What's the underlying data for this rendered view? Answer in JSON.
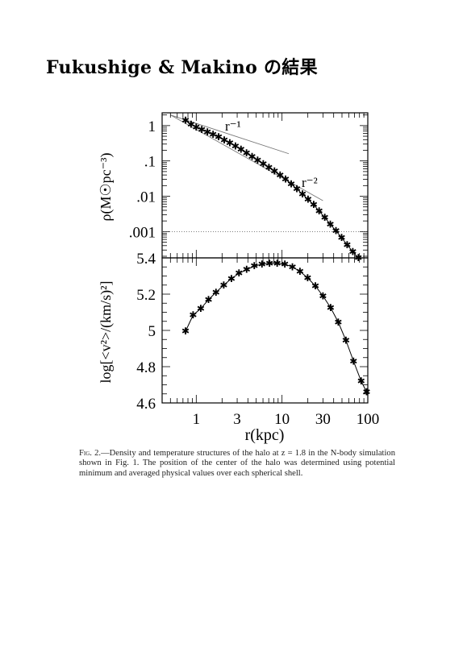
{
  "page": {
    "title": "Fukushige & Makino の結果"
  },
  "figure": {
    "caption_label": "Fig. 2.",
    "caption_text": "—Density and temperature structures of the halo at z = 1.8 in the N-body simulation shown in Fig. 1. The position of the center of the halo was determined using potential minimum and averaged physical values over each spherical shell."
  },
  "chart_data": [
    {
      "type": "line",
      "panel": "top",
      "ylabel": "ρ(M☉pc⁻³)",
      "xscale": "log",
      "yscale": "log",
      "xlim": [
        0.4,
        100
      ],
      "ylim": [
        0.00018,
        2.3
      ],
      "yticks": [
        1,
        0.1,
        0.01,
        0.001
      ],
      "ytick_labels": [
        "1",
        ".1",
        ".01",
        ".001"
      ],
      "annotations": [
        "r⁻¹",
        "r⁻²"
      ],
      "series": [
        {
          "x": [
            0.75,
            0.87,
            1.0,
            1.16,
            1.35,
            1.57,
            1.82,
            2.12,
            2.46,
            2.86,
            3.32,
            3.86,
            4.48,
            5.2,
            6.05,
            7.03,
            8.17,
            9.49,
            11.0,
            12.8,
            14.9,
            17.3,
            20.1,
            23.4,
            27.1,
            31.5,
            36.6,
            42.6,
            49.5,
            57.5,
            66.8,
            77.6
          ],
          "y": [
            1.38,
            1.08,
            0.9,
            0.77,
            0.66,
            0.56,
            0.47,
            0.39,
            0.32,
            0.26,
            0.21,
            0.165,
            0.13,
            0.103,
            0.082,
            0.065,
            0.051,
            0.039,
            0.03,
            0.022,
            0.016,
            0.0115,
            0.0081,
            0.0057,
            0.0038,
            0.0025,
            0.0016,
            0.00105,
            0.00067,
            0.00042,
            0.00027,
            0.00018
          ]
        }
      ],
      "guides": [
        {
          "label": "r⁻¹",
          "x": [
            0.5,
            12
          ],
          "y": [
            2.0,
            0.16
          ]
        },
        {
          "label": "r⁻²",
          "x": [
            0.5,
            30
          ],
          "y": [
            2.0,
            0.0075
          ]
        }
      ]
    },
    {
      "type": "line",
      "panel": "bottom",
      "xlabel": "r(kpc)",
      "ylabel": "log[<v²>/(km/s)²]",
      "xscale": "log",
      "xlim": [
        0.4,
        100
      ],
      "ylim": [
        4.6,
        5.4
      ],
      "xticks": [
        1,
        3,
        10,
        30,
        100
      ],
      "xtick_labels": [
        "1",
        "3",
        "10",
        "30",
        "100"
      ],
      "yticks": [
        4.6,
        4.8,
        5,
        5.2,
        5.4
      ],
      "ytick_labels": [
        "4.6",
        "4.8",
        "5",
        "5.2",
        "5.4"
      ],
      "series": [
        {
          "x": [
            0.75,
            0.92,
            1.13,
            1.39,
            1.7,
            2.09,
            2.57,
            3.15,
            3.87,
            4.75,
            5.83,
            7.15,
            8.78,
            10.8,
            13.2,
            16.2,
            19.9,
            24.5,
            30.0,
            36.9,
            45.3,
            55.6,
            68.2,
            83.7,
            97.0
          ],
          "y": [
            4.995,
            5.085,
            5.12,
            5.17,
            5.21,
            5.25,
            5.285,
            5.315,
            5.335,
            5.355,
            5.365,
            5.37,
            5.37,
            5.365,
            5.35,
            5.325,
            5.29,
            5.245,
            5.19,
            5.125,
            5.045,
            4.945,
            4.83,
            4.72,
            4.66
          ]
        }
      ]
    }
  ]
}
